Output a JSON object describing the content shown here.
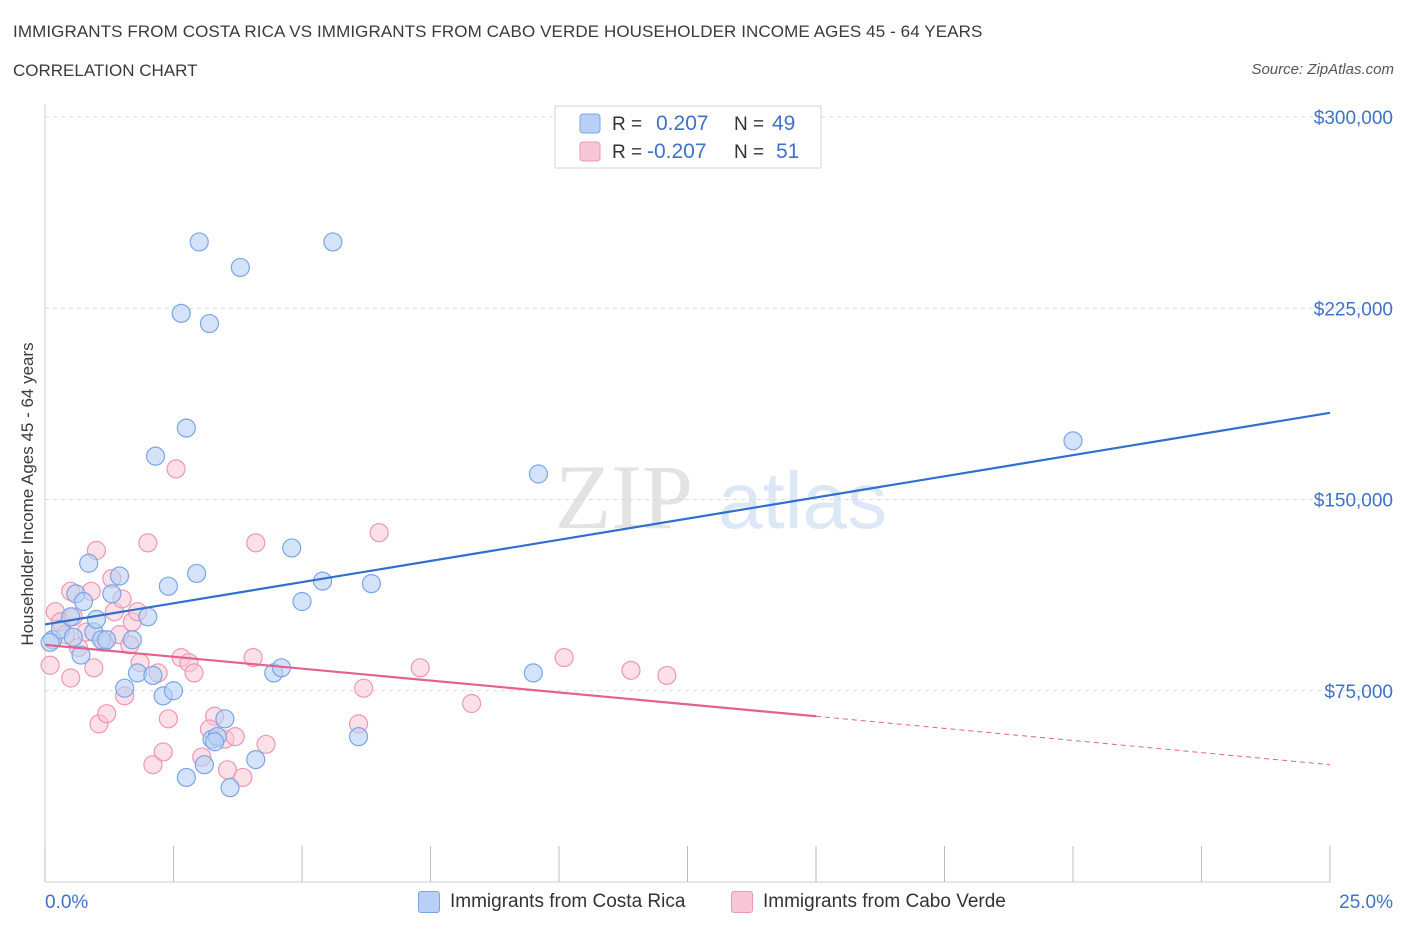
{
  "title": "IMMIGRANTS FROM COSTA RICA VS IMMIGRANTS FROM CABO VERDE HOUSEHOLDER INCOME AGES 45 - 64 YEARS",
  "subtitle": "CORRELATION CHART",
  "source": "Source: ZipAtlas.com",
  "watermark": {
    "zip": "ZIP",
    "atlas": "atlas"
  },
  "colors": {
    "blue_fill": "#b8d0f5",
    "blue_stroke": "#7aa6e6",
    "blue_line": "#2f6fcf",
    "pink_fill": "#f8c6d6",
    "pink_stroke": "#ee97b4",
    "pink_line": "#e5608e",
    "axis_text": "#3f72c8",
    "grid": "#dcdcdc"
  },
  "stats_box": {
    "rows": [
      {
        "r_label": "R =",
        "r_value": "0.207",
        "n_label": "N =",
        "n_value": "49"
      },
      {
        "r_label": "R =",
        "r_value": "-0.207",
        "n_label": "N =",
        "n_value": "51"
      }
    ]
  },
  "legend": [
    {
      "label": "Immigrants from Costa Rica"
    },
    {
      "label": "Immigrants from Cabo Verde"
    }
  ],
  "chart_data": {
    "type": "scatter",
    "ylabel": "Householder Income Ages 45 - 64 years",
    "xlim": [
      0,
      25
    ],
    "ylim": [
      0,
      300000
    ],
    "x_tick_labels": [
      "0.0%",
      "25.0%"
    ],
    "y_ticks": [
      75000,
      150000,
      225000,
      300000
    ],
    "y_tick_labels": [
      "$75,000",
      "$150,000",
      "$225,000",
      "$300,000"
    ],
    "grid": true,
    "series": [
      {
        "name": "Immigrants from Costa Rica",
        "trend": {
          "x0": 0,
          "y0": 101000,
          "x1": 25,
          "y1": 184000
        },
        "points": [
          [
            0.15,
            95000
          ],
          [
            0.3,
            99000
          ],
          [
            0.5,
            104000
          ],
          [
            0.55,
            96000
          ],
          [
            0.6,
            113000
          ],
          [
            0.7,
            89000
          ],
          [
            0.75,
            110000
          ],
          [
            0.85,
            125000
          ],
          [
            0.95,
            98000
          ],
          [
            1.0,
            103000
          ],
          [
            1.1,
            95000
          ],
          [
            1.2,
            95000
          ],
          [
            1.3,
            113000
          ],
          [
            1.45,
            120000
          ],
          [
            1.55,
            76000
          ],
          [
            1.7,
            95000
          ],
          [
            1.8,
            82000
          ],
          [
            2.0,
            104000
          ],
          [
            2.1,
            81000
          ],
          [
            2.15,
            167000
          ],
          [
            2.3,
            73000
          ],
          [
            2.4,
            116000
          ],
          [
            2.5,
            75000
          ],
          [
            2.65,
            223000
          ],
          [
            2.75,
            178000
          ],
          [
            2.95,
            121000
          ],
          [
            3.0,
            251000
          ],
          [
            3.1,
            46000
          ],
          [
            3.2,
            219000
          ],
          [
            3.25,
            56000
          ],
          [
            3.35,
            57000
          ],
          [
            3.5,
            64000
          ],
          [
            3.6,
            37000
          ],
          [
            3.8,
            241000
          ],
          [
            4.1,
            48000
          ],
          [
            4.45,
            82000
          ],
          [
            4.6,
            84000
          ],
          [
            4.8,
            131000
          ],
          [
            5.0,
            110000
          ],
          [
            5.4,
            118000
          ],
          [
            5.6,
            251000
          ],
          [
            6.1,
            57000
          ],
          [
            6.35,
            117000
          ],
          [
            9.5,
            82000
          ],
          [
            9.6,
            160000
          ],
          [
            20.0,
            173000
          ],
          [
            0.1,
            94000
          ],
          [
            2.75,
            41000
          ],
          [
            3.3,
            55000
          ]
        ]
      },
      {
        "name": "Immigrants from Cabo Verde",
        "trend": {
          "x0": 0,
          "y0": 93000,
          "x1": 15,
          "y1": 65000
        },
        "trend_extension": {
          "x0": 15,
          "y0": 65000,
          "x1": 25,
          "y1": 46000
        },
        "points": [
          [
            0.1,
            85000
          ],
          [
            0.2,
            106000
          ],
          [
            0.3,
            102000
          ],
          [
            0.4,
            97000
          ],
          [
            0.5,
            80000
          ],
          [
            0.55,
            104000
          ],
          [
            0.65,
            92000
          ],
          [
            0.8,
            98000
          ],
          [
            0.9,
            114000
          ],
          [
            0.95,
            84000
          ],
          [
            1.0,
            130000
          ],
          [
            1.05,
            62000
          ],
          [
            1.15,
            94000
          ],
          [
            1.2,
            66000
          ],
          [
            1.3,
            119000
          ],
          [
            1.35,
            106000
          ],
          [
            1.45,
            97000
          ],
          [
            1.5,
            111000
          ],
          [
            1.55,
            73000
          ],
          [
            1.65,
            93000
          ],
          [
            1.7,
            102000
          ],
          [
            1.8,
            106000
          ],
          [
            1.85,
            86000
          ],
          [
            2.0,
            133000
          ],
          [
            2.1,
            46000
          ],
          [
            2.2,
            82000
          ],
          [
            2.3,
            51000
          ],
          [
            2.4,
            64000
          ],
          [
            2.55,
            162000
          ],
          [
            2.65,
            88000
          ],
          [
            2.8,
            86000
          ],
          [
            2.9,
            82000
          ],
          [
            3.05,
            49000
          ],
          [
            3.3,
            65000
          ],
          [
            3.5,
            56000
          ],
          [
            3.55,
            44000
          ],
          [
            3.7,
            57000
          ],
          [
            3.85,
            41000
          ],
          [
            4.05,
            88000
          ],
          [
            4.1,
            133000
          ],
          [
            4.3,
            54000
          ],
          [
            6.1,
            62000
          ],
          [
            6.2,
            76000
          ],
          [
            6.5,
            137000
          ],
          [
            7.3,
            84000
          ],
          [
            8.3,
            70000
          ],
          [
            10.1,
            88000
          ],
          [
            11.4,
            83000
          ],
          [
            12.1,
            81000
          ],
          [
            0.5,
            114000
          ],
          [
            3.2,
            60000
          ]
        ]
      }
    ]
  }
}
